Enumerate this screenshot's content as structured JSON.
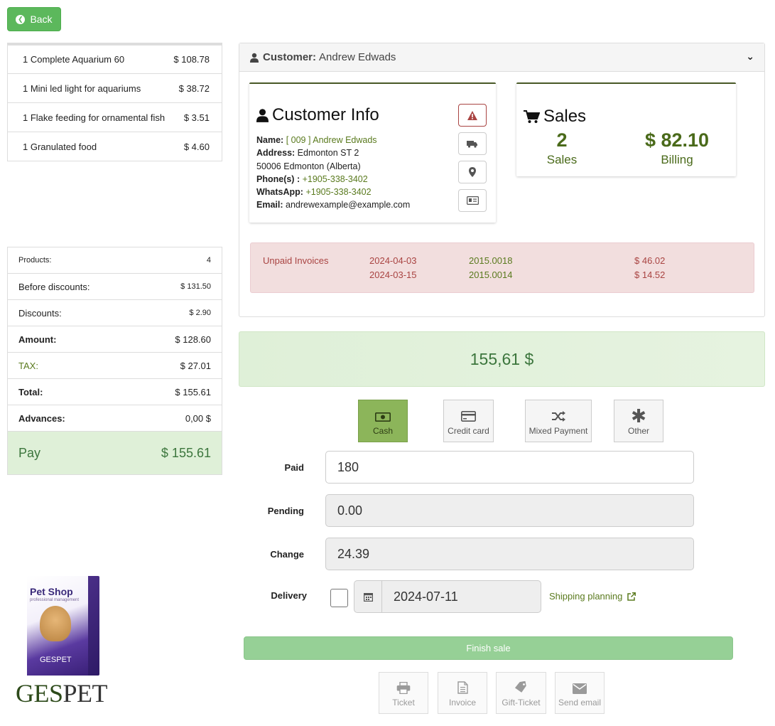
{
  "back_label": "Back",
  "cart": {
    "items": [
      {
        "label": "1 Complete Aquarium 60",
        "price": "$ 108.78"
      },
      {
        "label": "1 Mini led light for aquariums",
        "price": "$ 38.72"
      },
      {
        "label": "1 Flake feeding for ornamental fish",
        "price": "$ 3.51"
      },
      {
        "label": "1 Granulated food",
        "price": "$ 4.60"
      }
    ]
  },
  "totals": {
    "products_label": "Products:",
    "products": "4",
    "before_label": "Before discounts:",
    "before": "$ 131.50",
    "discounts_label": "Discounts:",
    "discounts": "$ 2.90",
    "amount_label": "Amount:",
    "amount": "$ 128.60",
    "tax_label": "TAX:",
    "tax": "$ 27.01",
    "total_label": "Total:",
    "total": "$ 155.61",
    "advances_label": "Advances:",
    "advances": "0,00 $",
    "pay_label": "Pay",
    "pay": "$ 155.61"
  },
  "logo": {
    "box_title": "Pet Shop",
    "box_sub": "professional management",
    "box_brand": "GESPET",
    "wordmark_a": "GES",
    "wordmark_b": "PET"
  },
  "customer": {
    "header_label": "Customer:",
    "name": "Andrew Edwads",
    "info_title": "Customer Info",
    "name_label": "Name:",
    "name_value": "[ 009 ] Andrew Edwads",
    "address_label": "Address:",
    "address_1": "Edmonton ST 2",
    "address_2": "50006  Edmonton (Alberta)",
    "phone_label": "Phone(s) :",
    "phone": "+1905-338-3402",
    "whatsapp_label": "WhatsApp:",
    "whatsapp": "+1905-338-3402",
    "email_label": "Email:",
    "email": "andrewexample@example.com"
  },
  "sales": {
    "title": "Sales",
    "count": "2",
    "count_label": "Sales",
    "billing": "$ 82.10",
    "billing_label": "Billing"
  },
  "unpaid": {
    "label": "Unpaid Invoices",
    "rows": [
      {
        "date": "2024-04-03",
        "number": "2015.0018",
        "amount": "$ 46.02"
      },
      {
        "date": "2024-03-15",
        "number": "2015.0014",
        "amount": "$ 14.52"
      }
    ]
  },
  "grand_total": "155,61 $",
  "payment_methods": [
    {
      "label": "Cash",
      "icon": "cash-icon"
    },
    {
      "label": "Credit card",
      "icon": "credit-card-icon"
    },
    {
      "label": "Mixed Payment",
      "icon": "shuffle-icon"
    },
    {
      "label": "Other",
      "icon": "asterisk-icon"
    }
  ],
  "form": {
    "paid_label": "Paid",
    "paid": "180",
    "pending_label": "Pending",
    "pending": "0.00",
    "change_label": "Change",
    "change": "24.39",
    "delivery_label": "Delivery",
    "delivery_date": "2024-07-11",
    "shipping_link": "Shipping planning"
  },
  "finish_label": "Finish sale",
  "actions": [
    {
      "label": "Ticket",
      "icon": "print-icon"
    },
    {
      "label": "Invoice",
      "icon": "document-icon"
    },
    {
      "label": "Gift-Ticket",
      "icon": "tag-icon"
    },
    {
      "label": "Send email",
      "icon": "envelope-icon"
    }
  ]
}
